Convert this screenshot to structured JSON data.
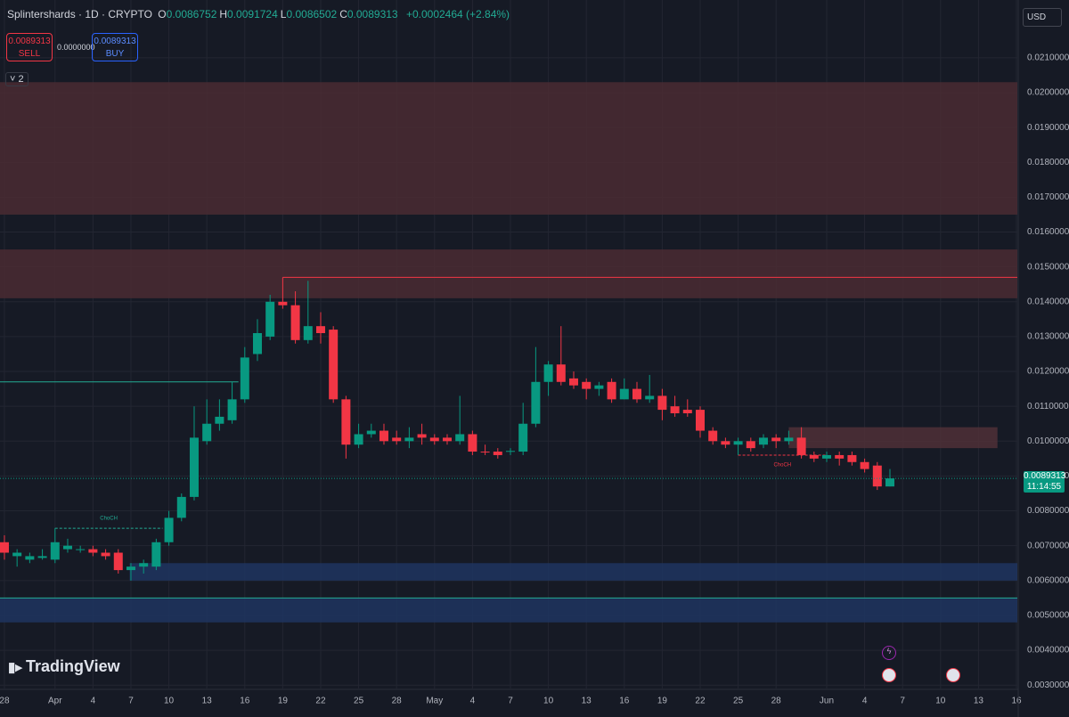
{
  "header": {
    "symbol": "Splintershards · 1D · CRYPTO",
    "fields": [
      {
        "label": "O",
        "value": "0.0086752"
      },
      {
        "label": "H",
        "value": "0.0091724"
      },
      {
        "label": "L",
        "value": "0.0086502"
      },
      {
        "label": "C",
        "value": "0.0089313"
      }
    ],
    "change": "+0.0002464 (+2.84%)",
    "sell": {
      "price": "0.0089313",
      "label": "SELL"
    },
    "spread": "0.0000000",
    "buy": {
      "price": "0.0089313",
      "label": "BUY"
    },
    "indicators": "2",
    "currency": "USD",
    "price_label": "0.0089313",
    "countdown": "11:14:55",
    "brand": "TradingView"
  },
  "chart_data": {
    "type": "candlestick",
    "x": [
      0,
      1,
      2,
      3,
      4,
      5,
      6,
      7,
      8,
      9,
      10,
      11,
      12,
      13,
      14,
      15,
      16,
      17,
      18,
      19,
      20,
      21,
      22,
      23,
      24,
      25,
      26,
      27,
      28,
      29,
      30,
      31,
      32,
      33,
      34,
      35,
      36,
      37,
      38,
      39,
      40,
      41,
      42,
      43,
      44,
      45,
      46,
      47,
      48,
      49,
      50,
      51,
      52,
      53,
      54,
      55,
      56,
      57,
      58,
      59,
      60,
      61,
      62,
      63,
      64,
      65,
      66,
      67,
      68,
      69,
      70
    ],
    "open": [
      0.0071,
      0.0067,
      0.0066,
      0.00665,
      0.0066,
      0.0069,
      0.0069,
      0.0069,
      0.0068,
      0.0068,
      0.0063,
      0.0064,
      0.0064,
      0.0071,
      0.0078,
      0.0084,
      0.01,
      0.0105,
      0.0106,
      0.0112,
      0.0125,
      0.013,
      0.014,
      0.0139,
      0.0129,
      0.0133,
      0.0132,
      0.0112,
      0.0099,
      0.0102,
      0.0103,
      0.0101,
      0.01,
      0.0102,
      0.0101,
      0.0101,
      0.01,
      0.0102,
      0.0097,
      0.0097,
      0.0097,
      0.0097,
      0.0105,
      0.0117,
      0.0122,
      0.0118,
      0.0117,
      0.0115,
      0.0117,
      0.0112,
      0.0115,
      0.0112,
      0.0113,
      0.011,
      0.0109,
      0.0109,
      0.0103,
      0.01,
      0.0099,
      0.01,
      0.0099,
      0.0101,
      0.01,
      0.0101,
      0.0096,
      0.0095,
      0.0096,
      0.0096,
      0.0094,
      0.0093,
      0.0087
    ],
    "high": [
      0.0073,
      0.0069,
      0.0068,
      0.0069,
      0.0075,
      0.0072,
      0.007,
      0.007,
      0.0069,
      0.0069,
      0.0065,
      0.0066,
      0.0072,
      0.008,
      0.0085,
      0.011,
      0.0112,
      0.0112,
      0.0117,
      0.0127,
      0.0135,
      0.0142,
      0.0147,
      0.0143,
      0.0146,
      0.0137,
      0.0133,
      0.0113,
      0.0105,
      0.0105,
      0.0105,
      0.0103,
      0.0104,
      0.0105,
      0.0102,
      0.0102,
      0.0113,
      0.0103,
      0.0099,
      0.0098,
      0.0098,
      0.0111,
      0.0127,
      0.0123,
      0.0133,
      0.012,
      0.0118,
      0.0117,
      0.0118,
      0.0118,
      0.0117,
      0.0119,
      0.0115,
      0.0113,
      0.0112,
      0.011,
      0.0104,
      0.0101,
      0.0101,
      0.0101,
      0.0102,
      0.0102,
      0.0103,
      0.0104,
      0.0097,
      0.0097,
      0.0097,
      0.0097,
      0.0095,
      0.0094,
      0.0092
    ],
    "low": [
      0.0066,
      0.0064,
      0.0065,
      0.0066,
      0.0065,
      0.0068,
      0.0068,
      0.0067,
      0.0066,
      0.0062,
      0.006,
      0.0062,
      0.0063,
      0.007,
      0.0077,
      0.0083,
      0.0099,
      0.0103,
      0.0105,
      0.0111,
      0.0123,
      0.0129,
      0.0138,
      0.0128,
      0.0128,
      0.0128,
      0.0111,
      0.0095,
      0.0098,
      0.0101,
      0.0099,
      0.0099,
      0.0098,
      0.0099,
      0.0099,
      0.0099,
      0.0099,
      0.0096,
      0.0096,
      0.0095,
      0.0096,
      0.0096,
      0.0104,
      0.0113,
      0.0116,
      0.0115,
      0.0112,
      0.0113,
      0.0111,
      0.0112,
      0.0111,
      0.0111,
      0.0106,
      0.0107,
      0.0107,
      0.0101,
      0.0099,
      0.0098,
      0.0096,
      0.0097,
      0.0098,
      0.0098,
      0.0099,
      0.0095,
      0.0094,
      0.0094,
      0.0093,
      0.0093,
      0.0091,
      0.0086,
      0.0087
    ],
    "close": [
      0.0068,
      0.0068,
      0.0067,
      0.0067,
      0.0071,
      0.007,
      0.0069,
      0.0068,
      0.0067,
      0.0063,
      0.0064,
      0.0065,
      0.0071,
      0.0078,
      0.0084,
      0.0101,
      0.0105,
      0.0107,
      0.0112,
      0.0124,
      0.0131,
      0.014,
      0.0139,
      0.0129,
      0.0133,
      0.0131,
      0.0112,
      0.0099,
      0.0102,
      0.0103,
      0.01,
      0.01,
      0.0101,
      0.0101,
      0.01,
      0.01,
      0.0102,
      0.0097,
      0.00968,
      0.0096,
      0.00972,
      0.0105,
      0.0117,
      0.0122,
      0.0117,
      0.0116,
      0.0115,
      0.0116,
      0.0112,
      0.0115,
      0.0112,
      0.0113,
      0.0109,
      0.0108,
      0.0108,
      0.0103,
      0.01,
      0.0099,
      0.01,
      0.0098,
      0.0101,
      0.01,
      0.0101,
      0.0096,
      0.0095,
      0.0096,
      0.0095,
      0.0094,
      0.0092,
      0.0087,
      0.0089313
    ],
    "colors": {
      "up": "#089981",
      "down": "#f23645"
    },
    "xlim": [
      -0.35,
      80.07
    ],
    "xticks": [
      {
        "value": 0,
        "label": "28"
      },
      {
        "value": 4,
        "label": "Apr"
      },
      {
        "value": 7,
        "label": "4"
      },
      {
        "value": 10,
        "label": "7"
      },
      {
        "value": 13,
        "label": "10"
      },
      {
        "value": 16,
        "label": "13"
      },
      {
        "value": 19,
        "label": "16"
      },
      {
        "value": 22,
        "label": "19"
      },
      {
        "value": 25,
        "label": "22"
      },
      {
        "value": 28,
        "label": "25"
      },
      {
        "value": 31,
        "label": "28"
      },
      {
        "value": 34,
        "label": "May"
      },
      {
        "value": 37,
        "label": "4"
      },
      {
        "value": 40,
        "label": "7"
      },
      {
        "value": 43,
        "label": "10"
      },
      {
        "value": 46,
        "label": "13"
      },
      {
        "value": 49,
        "label": "16"
      },
      {
        "value": 52,
        "label": "19"
      },
      {
        "value": 55,
        "label": "22"
      },
      {
        "value": 58,
        "label": "25"
      },
      {
        "value": 61,
        "label": "28"
      },
      {
        "value": 65,
        "label": "Jun"
      },
      {
        "value": 68,
        "label": "4"
      },
      {
        "value": 71,
        "label": "7"
      },
      {
        "value": 74,
        "label": "10"
      },
      {
        "value": 77,
        "label": "13"
      },
      {
        "value": 80,
        "label": "16"
      }
    ],
    "ylim": [
      0.002903,
      0.022658
    ],
    "yticks": [
      {
        "value": 0.003,
        "label": "0.0030000"
      },
      {
        "value": 0.004,
        "label": "0.0040000"
      },
      {
        "value": 0.005,
        "label": "0.0050000"
      },
      {
        "value": 0.006,
        "label": "0.0060000"
      },
      {
        "value": 0.007,
        "label": "0.0070000"
      },
      {
        "value": 0.008,
        "label": "0.0080000"
      },
      {
        "value": 0.009,
        "label": "0.0090000"
      },
      {
        "value": 0.01,
        "label": "0.0100000"
      },
      {
        "value": 0.011,
        "label": "0.0110000"
      },
      {
        "value": 0.012,
        "label": "0.0120000"
      },
      {
        "value": 0.013,
        "label": "0.0130000"
      },
      {
        "value": 0.014,
        "label": "0.0140000"
      },
      {
        "value": 0.015,
        "label": "0.0150000"
      },
      {
        "value": 0.016,
        "label": "0.0160000"
      },
      {
        "value": 0.017,
        "label": "0.0170000"
      },
      {
        "value": 0.018,
        "label": "0.0180000"
      },
      {
        "value": 0.019,
        "label": "0.0190000"
      },
      {
        "value": 0.02,
        "label": "0.0200000"
      },
      {
        "value": 0.021,
        "label": "0.0210000"
      }
    ],
    "grid": true,
    "zones": [
      {
        "range": [
          0.0165,
          0.0203
        ],
        "x": [
          -0.35,
          80.07
        ],
        "color": "#4a2c33"
      },
      {
        "range": [
          0.0141,
          0.0155
        ],
        "x": [
          -0.35,
          80.07
        ],
        "color": "#4a2c33"
      },
      {
        "range": [
          0.0098,
          0.0104
        ],
        "x": [
          62,
          78.5
        ],
        "color": "#4f3037"
      },
      {
        "range": [
          0.006,
          0.0065
        ],
        "x": [
          9.9,
          80.07
        ],
        "color": "#1e3560"
      },
      {
        "range": [
          0.0048,
          0.0055
        ],
        "x": [
          -0.35,
          80.07
        ],
        "color": "#1e3560"
      }
    ],
    "levels": [
      {
        "value": 0.0147,
        "x": [
          22,
          80.07
        ],
        "color": "#f23645"
      },
      {
        "value": 0.0117,
        "x": [
          -0.35,
          18.5
        ],
        "color": "#22ab94"
      },
      {
        "value": 0.0055,
        "x": [
          -0.35,
          80.07
        ],
        "color": "#22ab94"
      }
    ],
    "annotations": [
      {
        "text": "ChoCH",
        "value": 0.0075,
        "x": [
          4,
          12.5
        ],
        "color": "#22ab94"
      },
      {
        "text": "ChoCH",
        "value": 0.0096,
        "x": [
          58,
          65
        ],
        "color": "#f23645"
      }
    ]
  }
}
